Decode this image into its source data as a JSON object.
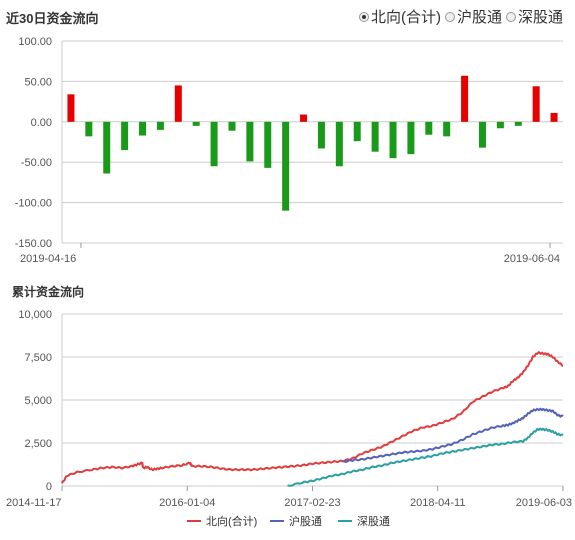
{
  "header": {
    "top_title": "近30日资金流向",
    "bottom_title": "累计资金流向",
    "radio_options": [
      {
        "label": "北向(合计)",
        "selected": true
      },
      {
        "label": "沪股通",
        "selected": false
      },
      {
        "label": "深股通",
        "selected": false
      }
    ]
  },
  "colors": {
    "positive": "#e60000",
    "negative": "#1a9a1a",
    "north": "#e03c3c",
    "sh": "#5462b8",
    "sz": "#2aa0a0",
    "grid": "#cccccc"
  },
  "chart_data": [
    {
      "type": "bar",
      "title": "近30日资金流向",
      "ylim": [
        -150,
        100
      ],
      "yticks": [
        "100.00",
        "50.00",
        "0.00",
        "-50.00",
        "-100.00",
        "-150.00"
      ],
      "ytick_values": [
        100,
        50,
        0,
        -50,
        -100,
        -150
      ],
      "xtick_labels": [
        "2019-04-16",
        "2019-06-04"
      ],
      "values": [
        34,
        -18,
        -64,
        -35,
        -17,
        -10,
        45,
        -5,
        -55,
        -11,
        -49,
        -57,
        -110,
        9,
        -33,
        -55,
        -24,
        -37,
        -45,
        -40,
        -16,
        -18,
        57,
        -32,
        -8,
        -5,
        44,
        11
      ],
      "grid": true
    },
    {
      "type": "line",
      "title": "累计资金流向",
      "ylim": [
        0,
        10000
      ],
      "yticks": [
        "10,000",
        "7,500",
        "5,000",
        "2,500",
        "0"
      ],
      "ytick_values": [
        10000,
        7500,
        5000,
        2500,
        0
      ],
      "xtick_labels": [
        "2014-11-17",
        "2016-01-04",
        "2017-02-23",
        "2018-04-11",
        "2019-06-03"
      ],
      "grid": true,
      "series": [
        {
          "name": "北向(合计)",
          "points": [
            [
              0.0,
              150
            ],
            [
              0.01,
              600
            ],
            [
              0.03,
              800
            ],
            [
              0.06,
              950
            ],
            [
              0.08,
              1050
            ],
            [
              0.1,
              1100
            ],
            [
              0.12,
              1050
            ],
            [
              0.14,
              1150
            ],
            [
              0.15,
              1250
            ],
            [
              0.16,
              1350
            ],
            [
              0.162,
              1050
            ],
            [
              0.17,
              1100
            ],
            [
              0.18,
              950
            ],
            [
              0.19,
              1000
            ],
            [
              0.2,
              1050
            ],
            [
              0.22,
              1150
            ],
            [
              0.24,
              1200
            ],
            [
              0.255,
              1350
            ],
            [
              0.26,
              1150
            ],
            [
              0.28,
              1150
            ],
            [
              0.3,
              1100
            ],
            [
              0.32,
              1000
            ],
            [
              0.34,
              950
            ],
            [
              0.36,
              950
            ],
            [
              0.38,
              950
            ],
            [
              0.4,
              1000
            ],
            [
              0.42,
              1050
            ],
            [
              0.44,
              1100
            ],
            [
              0.46,
              1150
            ],
            [
              0.48,
              1200
            ],
            [
              0.5,
              1300
            ],
            [
              0.52,
              1350
            ],
            [
              0.54,
              1400
            ],
            [
              0.56,
              1450
            ],
            [
              0.58,
              1600
            ],
            [
              0.6,
              1900
            ],
            [
              0.62,
              2100
            ],
            [
              0.64,
              2300
            ],
            [
              0.66,
              2600
            ],
            [
              0.68,
              2900
            ],
            [
              0.7,
              3200
            ],
            [
              0.72,
              3400
            ],
            [
              0.74,
              3500
            ],
            [
              0.76,
              3700
            ],
            [
              0.78,
              3900
            ],
            [
              0.8,
              4300
            ],
            [
              0.82,
              4900
            ],
            [
              0.84,
              5200
            ],
            [
              0.86,
              5500
            ],
            [
              0.88,
              5700
            ],
            [
              0.89,
              5800
            ],
            [
              0.9,
              6100
            ],
            [
              0.91,
              6300
            ],
            [
              0.92,
              6600
            ],
            [
              0.93,
              7000
            ],
            [
              0.94,
              7500
            ],
            [
              0.95,
              7750
            ],
            [
              0.96,
              7700
            ],
            [
              0.97,
              7650
            ],
            [
              0.98,
              7500
            ],
            [
              0.99,
              7200
            ],
            [
              1.0,
              7000
            ]
          ]
        },
        {
          "name": "沪股通",
          "points": [
            [
              0.56,
              1400
            ],
            [
              0.58,
              1500
            ],
            [
              0.6,
              1550
            ],
            [
              0.62,
              1650
            ],
            [
              0.64,
              1750
            ],
            [
              0.66,
              1850
            ],
            [
              0.68,
              1950
            ],
            [
              0.7,
              2000
            ],
            [
              0.72,
              2050
            ],
            [
              0.74,
              2150
            ],
            [
              0.76,
              2300
            ],
            [
              0.78,
              2450
            ],
            [
              0.8,
              2700
            ],
            [
              0.82,
              3000
            ],
            [
              0.84,
              3200
            ],
            [
              0.86,
              3400
            ],
            [
              0.88,
              3500
            ],
            [
              0.89,
              3550
            ],
            [
              0.9,
              3650
            ],
            [
              0.91,
              3800
            ],
            [
              0.92,
              3950
            ],
            [
              0.93,
              4200
            ],
            [
              0.94,
              4400
            ],
            [
              0.95,
              4450
            ],
            [
              0.96,
              4450
            ],
            [
              0.97,
              4400
            ],
            [
              0.98,
              4350
            ],
            [
              0.99,
              4100
            ],
            [
              1.0,
              4050
            ]
          ]
        },
        {
          "name": "深股通",
          "points": [
            [
              0.45,
              0
            ],
            [
              0.48,
              200
            ],
            [
              0.5,
              300
            ],
            [
              0.52,
              450
            ],
            [
              0.54,
              600
            ],
            [
              0.56,
              700
            ],
            [
              0.58,
              850
            ],
            [
              0.6,
              950
            ],
            [
              0.62,
              1100
            ],
            [
              0.64,
              1200
            ],
            [
              0.66,
              1350
            ],
            [
              0.68,
              1450
            ],
            [
              0.7,
              1550
            ],
            [
              0.72,
              1650
            ],
            [
              0.74,
              1750
            ],
            [
              0.76,
              1900
            ],
            [
              0.78,
              2000
            ],
            [
              0.8,
              2100
            ],
            [
              0.82,
              2200
            ],
            [
              0.84,
              2300
            ],
            [
              0.86,
              2400
            ],
            [
              0.88,
              2450
            ],
            [
              0.9,
              2550
            ],
            [
              0.92,
              2600
            ],
            [
              0.93,
              2800
            ],
            [
              0.94,
              3100
            ],
            [
              0.95,
              3300
            ],
            [
              0.96,
              3300
            ],
            [
              0.97,
              3250
            ],
            [
              0.98,
              3150
            ],
            [
              0.99,
              3000
            ],
            [
              1.0,
              2950
            ]
          ]
        }
      ]
    }
  ]
}
